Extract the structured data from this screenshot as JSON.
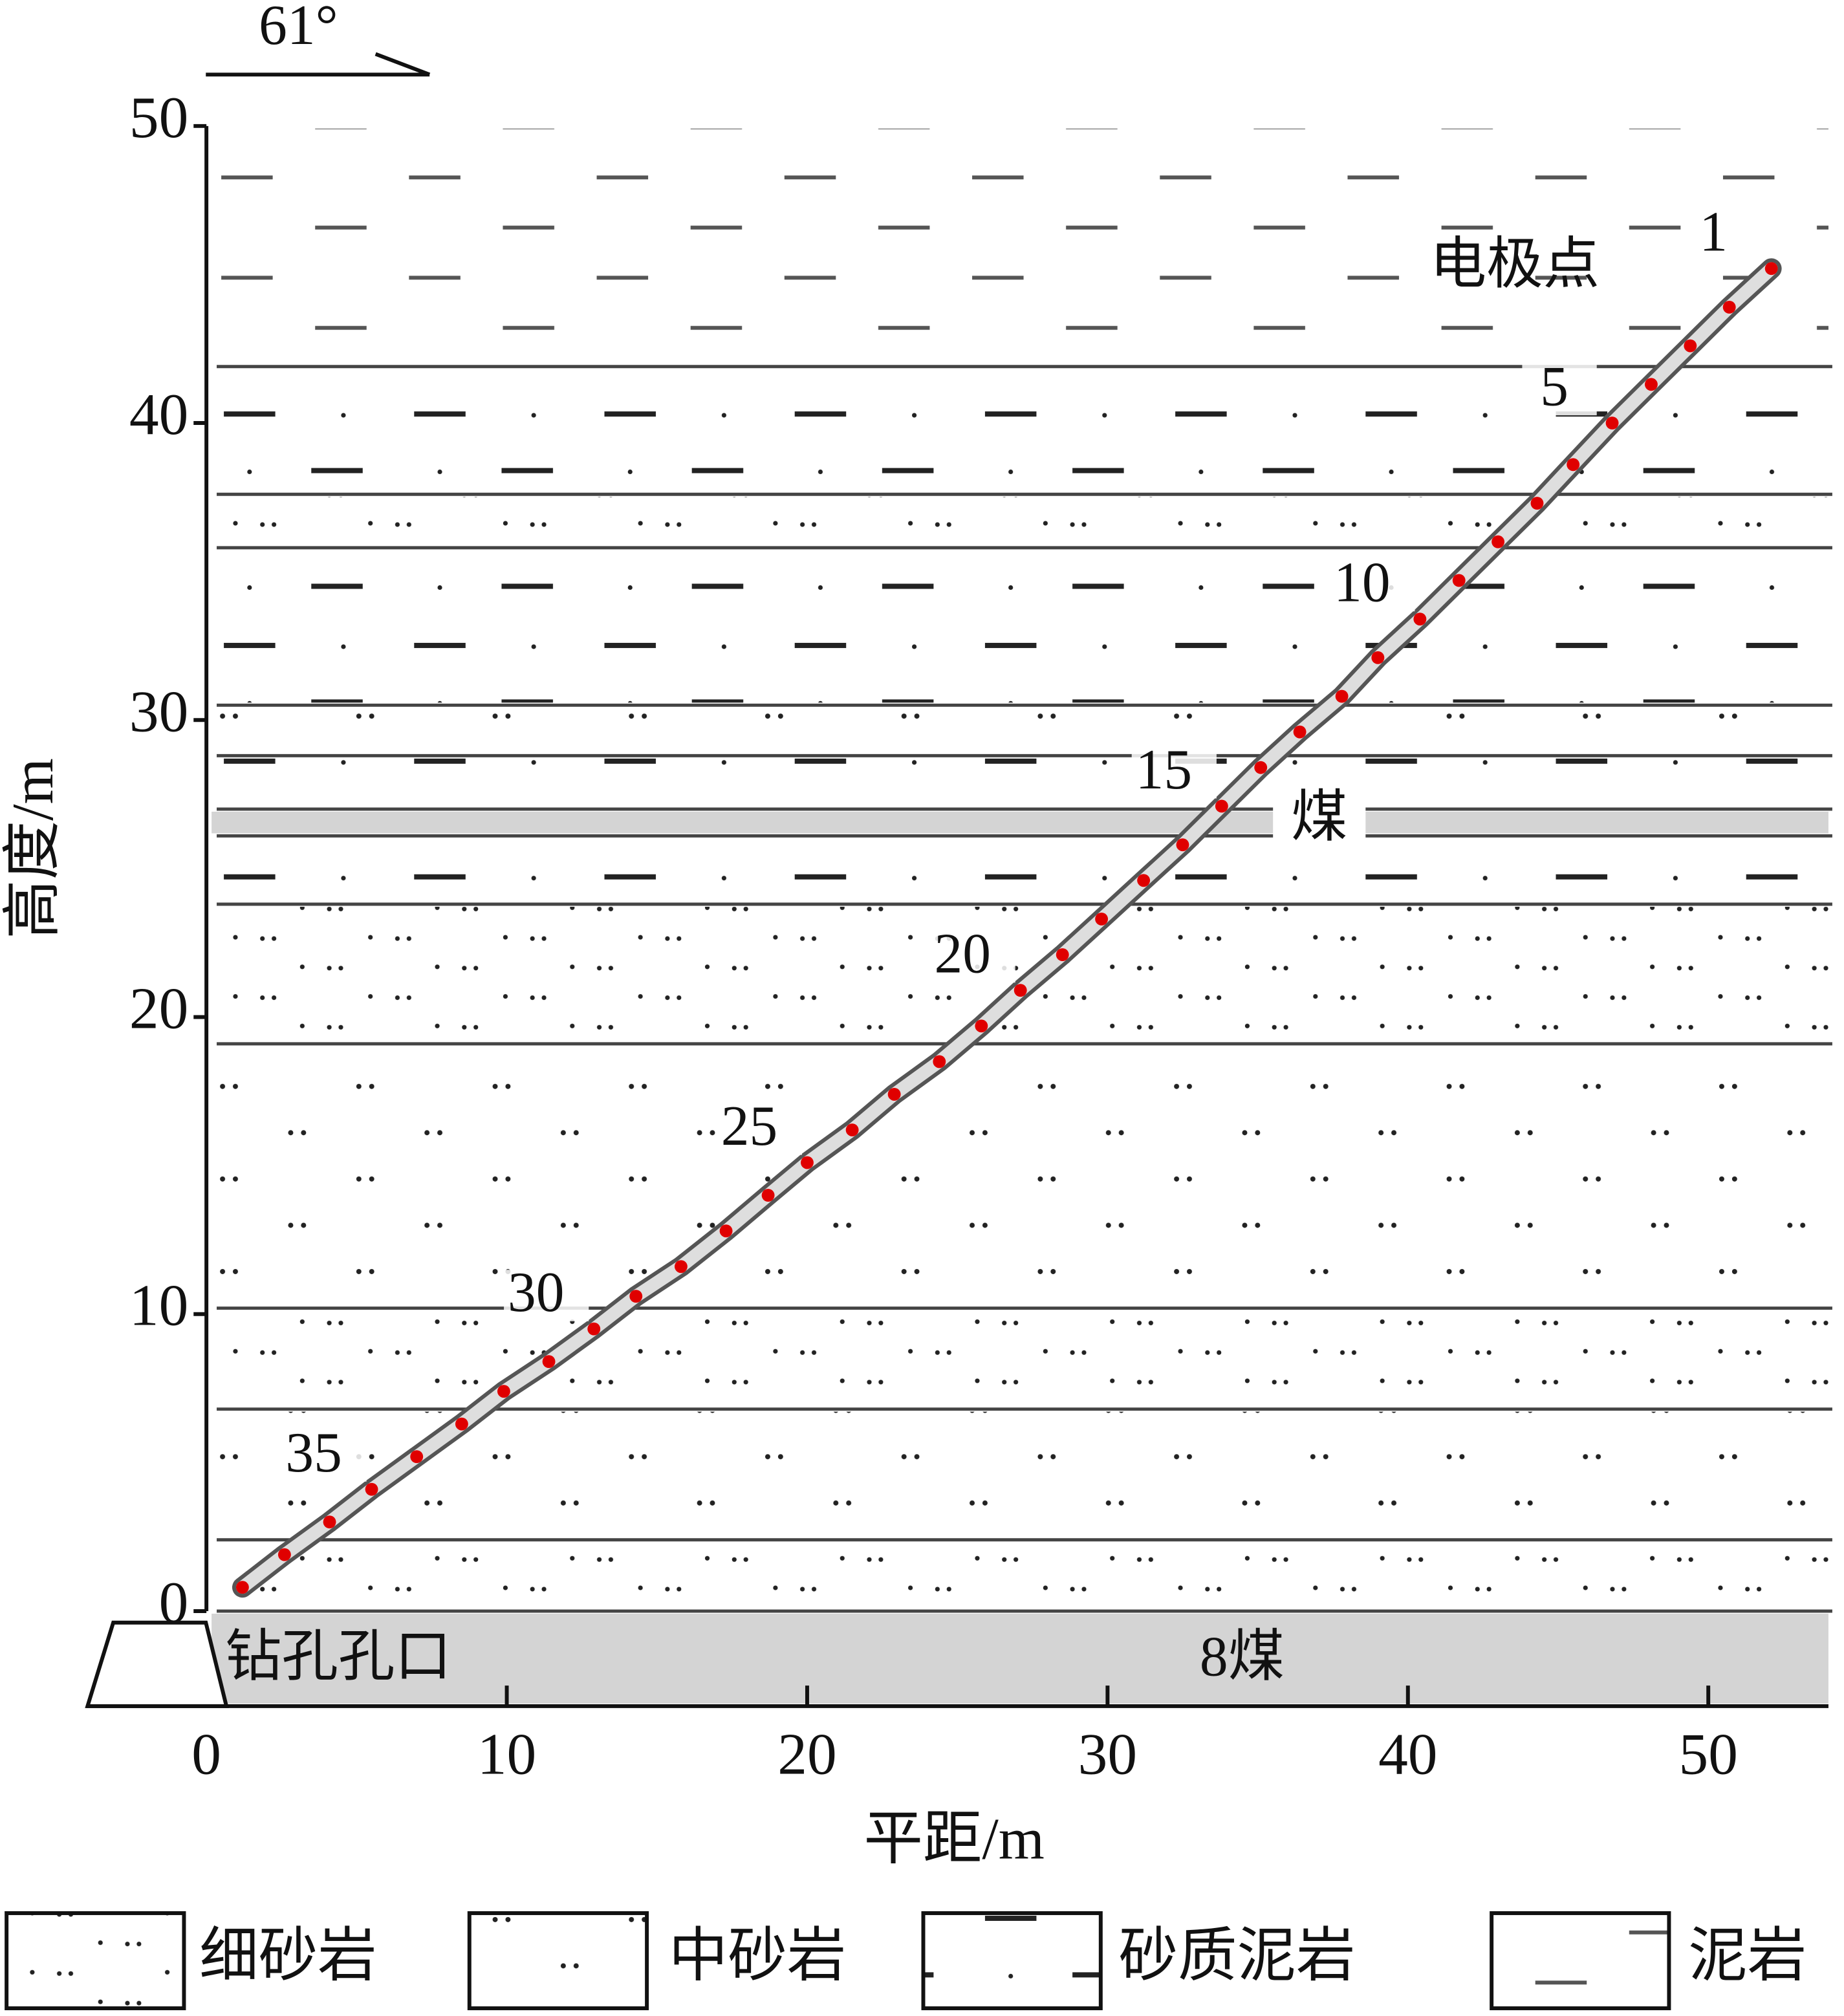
{
  "chart_data": {
    "type": "borehole",
    "xlabel": "平距/m",
    "ylabel": "高度/m",
    "xlim": [
      -4,
      54
    ],
    "ylim": [
      -3.2,
      50
    ],
    "xticks": [
      0,
      10,
      20,
      30,
      40,
      50
    ],
    "yticks": [
      0,
      10,
      20,
      30,
      40,
      50
    ],
    "annotations": {
      "angle": "61°",
      "electrode": "电极点",
      "coal": "煤",
      "coal8": "8煤",
      "collar": "钻孔孔口"
    },
    "layers": [
      {
        "top": 50,
        "bottom": 41.9,
        "pattern": "mud"
      },
      {
        "top": 41.9,
        "bottom": 37.6,
        "pattern": "sandymud"
      },
      {
        "top": 37.6,
        "bottom": 35.8,
        "pattern": "fine"
      },
      {
        "top": 35.8,
        "bottom": 30.5,
        "pattern": "sandymud"
      },
      {
        "top": 30.5,
        "bottom": 28.8,
        "pattern": "medium"
      },
      {
        "top": 28.8,
        "bottom": 27.0,
        "pattern": "sandymud"
      },
      {
        "top": 27.0,
        "bottom": 26.1,
        "pattern": "coal"
      },
      {
        "top": 26.1,
        "bottom": 23.8,
        "pattern": "sandymud"
      },
      {
        "top": 23.8,
        "bottom": 19.1,
        "pattern": "fine"
      },
      {
        "top": 19.1,
        "bottom": 10.2,
        "pattern": "medium"
      },
      {
        "top": 10.2,
        "bottom": 6.8,
        "pattern": "fine"
      },
      {
        "top": 6.8,
        "bottom": 2.4,
        "pattern": "medium"
      },
      {
        "top": 2.4,
        "bottom": 0,
        "pattern": "fine"
      },
      {
        "top": 0,
        "bottom": -3.2,
        "pattern": "coal"
      }
    ],
    "legend": [
      {
        "name": "细砂岩",
        "pattern": "fine"
      },
      {
        "name": "中砂岩",
        "pattern": "medium"
      },
      {
        "name": "砂质泥岩",
        "pattern": "sandymud"
      },
      {
        "name": "泥岩",
        "pattern": "mud"
      }
    ],
    "electrodes": {
      "color": "#e00000",
      "x": [
        52.1,
        50.7,
        49.4,
        48.1,
        46.8,
        45.5,
        44.3,
        43.0,
        41.7,
        40.4,
        39.0,
        37.8,
        36.4,
        35.1,
        33.8,
        32.5,
        31.2,
        29.8,
        28.5,
        27.1,
        25.8,
        24.4,
        22.9,
        21.5,
        20.0,
        18.7,
        17.3,
        15.8,
        14.3,
        12.9,
        11.4,
        9.9,
        8.5,
        7.0,
        5.5,
        4.1,
        2.6,
        1.2
      ],
      "y": [
        45.2,
        43.9,
        42.6,
        41.3,
        40.0,
        38.6,
        37.3,
        36.0,
        34.7,
        33.4,
        32.1,
        30.8,
        29.6,
        28.4,
        27.1,
        25.8,
        24.6,
        23.3,
        22.1,
        20.9,
        19.7,
        18.5,
        17.4,
        16.2,
        15.1,
        14.0,
        12.8,
        11.6,
        10.6,
        9.5,
        8.4,
        7.4,
        6.3,
        5.2,
        4.1,
        3.0,
        1.9,
        0.8
      ],
      "point_labels": [
        "1",
        null,
        null,
        null,
        "5",
        null,
        null,
        null,
        null,
        "10",
        null,
        null,
        null,
        null,
        "15",
        null,
        null,
        null,
        null,
        "20",
        null,
        null,
        null,
        null,
        "25",
        null,
        null,
        null,
        null,
        "30",
        null,
        null,
        null,
        null,
        "35",
        null,
        null,
        null
      ]
    }
  }
}
